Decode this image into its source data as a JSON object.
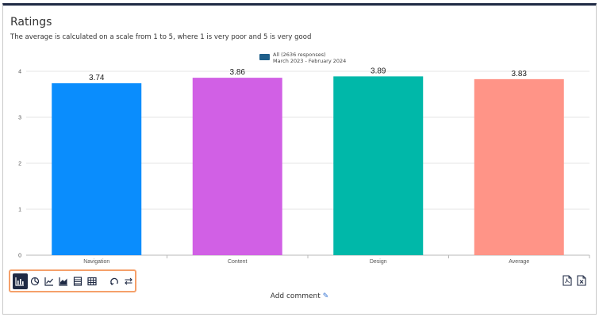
{
  "header": {
    "title": "Ratings",
    "subtitle": "The average is calculated on a scale from 1 to 5, where 1 is very poor and 5 is very good"
  },
  "chart_data": {
    "type": "bar",
    "categories": [
      "Navigation",
      "Content",
      "Design",
      "Average"
    ],
    "values": [
      3.74,
      3.86,
      3.89,
      3.83
    ],
    "data_labels": [
      "3.74",
      "3.86",
      "3.89",
      "3.83"
    ],
    "bar_colors": [
      "#0a8dfd",
      "#d160e5",
      "#00b8a9",
      "#ff9487"
    ],
    "series": [
      {
        "name": "All (2636 responses)",
        "subname": "March 2023 - February 2024",
        "color": "#1f5f8a"
      }
    ],
    "yticks": [
      "0",
      "1",
      "2",
      "3",
      "4"
    ],
    "ylim": [
      0,
      4
    ],
    "grid": true,
    "legend_position": "top-center"
  },
  "toolbar": {
    "buttons": [
      {
        "icon": "bar-chart-icon",
        "active": true
      },
      {
        "icon": "pie-chart-icon",
        "active": false
      },
      {
        "icon": "line-chart-icon",
        "active": false
      },
      {
        "icon": "area-chart-icon",
        "active": false
      },
      {
        "icon": "list-table-icon",
        "active": false
      },
      {
        "icon": "grid-table-icon",
        "active": false
      },
      {
        "icon": "rotate-icon",
        "active": false
      },
      {
        "icon": "swap-icon",
        "active": false
      }
    ]
  },
  "export": {
    "pdf_icon": "pdf-export-icon",
    "excel_icon": "excel-export-icon"
  },
  "comment": {
    "label": "Add comment",
    "icon": "pencil-icon"
  },
  "colors": {
    "frame_top": "#1f2a44",
    "toolbar_outline": "#f5a06a"
  }
}
